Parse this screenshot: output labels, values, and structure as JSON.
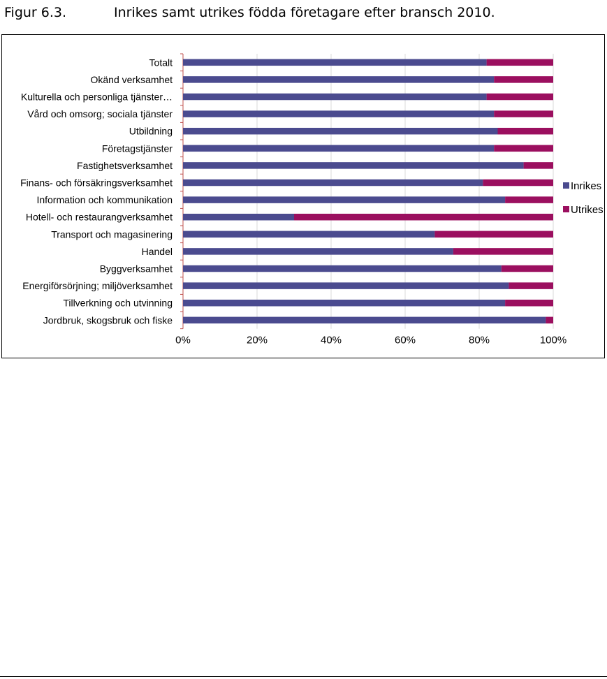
{
  "figure": {
    "label": "Figur 6.3.",
    "title": "Inrikes samt utrikes födda företagare efter bransch 2010."
  },
  "chart_data": {
    "type": "bar",
    "orientation": "horizontal",
    "stacked": "percent",
    "categories": [
      "Totalt",
      "Okänd verksamhet",
      "Kulturella och personliga tjänster…",
      "Vård och omsorg; sociala tjänster",
      "Utbildning",
      "Företagstjänster",
      "Fastighetsverksamhet",
      "Finans- och försäkringsverksamhet",
      "Information och kommunikation",
      "Hotell- och restaurangverksamhet",
      "Transport och magasinering",
      "Handel",
      "Byggverksamhet",
      "Energiförsörjning; miljöverksamhet",
      "Tillverkning och utvinning",
      "Jordbruk, skogsbruk och fiske"
    ],
    "series": [
      {
        "name": "Inrikes",
        "color": "#4B4B8F",
        "values": [
          82,
          84,
          82,
          84,
          85,
          84,
          92,
          81,
          87,
          30,
          68,
          73,
          86,
          88,
          87,
          98
        ]
      },
      {
        "name": "Utrikes",
        "color": "#9B0F5F",
        "values": [
          18,
          16,
          18,
          16,
          15,
          16,
          8,
          19,
          13,
          70,
          32,
          27,
          14,
          12,
          13,
          2
        ]
      }
    ],
    "xlim": [
      0,
      100
    ],
    "xticks": [
      "0%",
      "20%",
      "40%",
      "60%",
      "80%",
      "100%"
    ],
    "grid": true,
    "legend_position": "right"
  }
}
